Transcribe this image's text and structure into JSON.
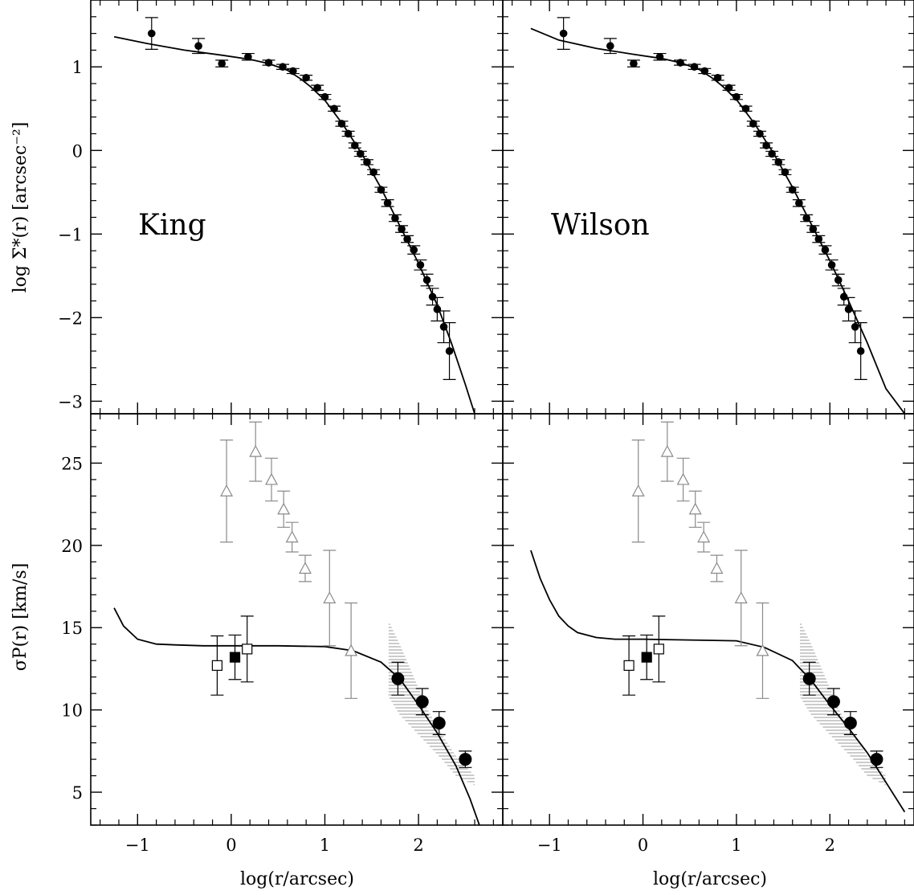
{
  "figure": {
    "panel_labels": [
      "King",
      "Wilson"
    ],
    "xlabel": "log(r/arcsec)",
    "ylabel_top": "log Σ*(r) [arcsec⁻²]",
    "ylabel_bottom": "σP(r) [km/s]"
  },
  "chart_data": [
    {
      "type": "scatter",
      "panel": "top-left",
      "title": "",
      "annotation": "King",
      "xlabel": "",
      "ylabel": "log Σ*(r) [arcsec⁻²]",
      "xlim": [
        -1.5,
        2.9
      ],
      "ylim": [
        -3.15,
        1.8
      ],
      "xticks": [
        -1,
        0,
        1,
        2
      ],
      "yticks": [
        -3,
        -2,
        -1,
        0,
        1
      ],
      "series": [
        {
          "marker": "filled-circle",
          "x": [
            -0.85,
            -0.35,
            -0.1,
            0.18,
            0.4,
            0.55,
            0.66,
            0.8,
            0.92,
            1.0,
            1.1,
            1.18,
            1.25,
            1.32,
            1.38,
            1.45,
            1.52,
            1.6,
            1.67,
            1.75,
            1.82,
            1.88,
            1.95,
            2.02,
            2.09,
            2.15,
            2.2,
            2.27,
            2.33
          ],
          "y": [
            1.4,
            1.25,
            1.04,
            1.12,
            1.05,
            1.0,
            0.95,
            0.87,
            0.75,
            0.64,
            0.5,
            0.32,
            0.2,
            0.06,
            -0.04,
            -0.14,
            -0.26,
            -0.47,
            -0.63,
            -0.81,
            -0.94,
            -1.06,
            -1.19,
            -1.37,
            -1.55,
            -1.75,
            -1.9,
            -2.11,
            -2.4
          ],
          "yerr": [
            0.19,
            0.09,
            0.04,
            0.04,
            0.03,
            0.03,
            0.03,
            0.03,
            0.03,
            0.03,
            0.03,
            0.03,
            0.03,
            0.03,
            0.03,
            0.03,
            0.03,
            0.03,
            0.04,
            0.04,
            0.04,
            0.04,
            0.05,
            0.06,
            0.07,
            0.1,
            0.14,
            0.19,
            0.34
          ]
        }
      ],
      "model": {
        "x": [
          -1.25,
          -0.9,
          -0.5,
          -0.1,
          0.2,
          0.4,
          0.6,
          0.75,
          0.85,
          1.0,
          1.2,
          1.4,
          1.6,
          1.8,
          2.0,
          2.2,
          2.35,
          2.5,
          2.6
        ],
        "y": [
          1.36,
          1.28,
          1.2,
          1.14,
          1.09,
          1.04,
          0.96,
          0.85,
          0.76,
          0.6,
          0.3,
          -0.05,
          -0.45,
          -0.9,
          -1.35,
          -1.85,
          -2.3,
          -2.8,
          -3.15
        ]
      }
    },
    {
      "type": "scatter",
      "panel": "top-right",
      "title": "",
      "annotation": "Wilson",
      "xlabel": "",
      "ylabel": "",
      "xlim": [
        -1.5,
        2.9
      ],
      "ylim": [
        -3.15,
        1.8
      ],
      "xticks": [
        -1,
        0,
        1,
        2
      ],
      "yticks": [
        -3,
        -2,
        -1,
        0,
        1
      ],
      "series": [
        {
          "marker": "filled-circle",
          "x": [
            -0.85,
            -0.35,
            -0.1,
            0.18,
            0.4,
            0.55,
            0.66,
            0.8,
            0.92,
            1.0,
            1.1,
            1.18,
            1.25,
            1.32,
            1.38,
            1.45,
            1.52,
            1.6,
            1.67,
            1.75,
            1.82,
            1.88,
            1.95,
            2.02,
            2.09,
            2.15,
            2.2,
            2.27,
            2.33
          ],
          "y": [
            1.4,
            1.25,
            1.04,
            1.12,
            1.05,
            1.0,
            0.95,
            0.87,
            0.75,
            0.64,
            0.5,
            0.32,
            0.2,
            0.06,
            -0.04,
            -0.14,
            -0.26,
            -0.47,
            -0.63,
            -0.81,
            -0.94,
            -1.06,
            -1.19,
            -1.37,
            -1.55,
            -1.75,
            -1.9,
            -2.11,
            -2.4
          ],
          "yerr": [
            0.19,
            0.09,
            0.04,
            0.04,
            0.03,
            0.03,
            0.03,
            0.03,
            0.03,
            0.03,
            0.03,
            0.03,
            0.03,
            0.03,
            0.03,
            0.03,
            0.03,
            0.03,
            0.04,
            0.04,
            0.04,
            0.04,
            0.05,
            0.06,
            0.07,
            0.1,
            0.14,
            0.19,
            0.34
          ]
        }
      ],
      "model": {
        "x": [
          -1.2,
          -0.9,
          -0.5,
          -0.1,
          0.2,
          0.4,
          0.6,
          0.75,
          0.85,
          1.0,
          1.2,
          1.4,
          1.6,
          1.8,
          2.0,
          2.2,
          2.4,
          2.6,
          2.8
        ],
        "y": [
          1.46,
          1.32,
          1.22,
          1.15,
          1.1,
          1.05,
          0.97,
          0.86,
          0.77,
          0.61,
          0.31,
          -0.04,
          -0.44,
          -0.88,
          -1.32,
          -1.8,
          -2.3,
          -2.85,
          -3.15
        ]
      }
    },
    {
      "type": "scatter",
      "panel": "bottom-left",
      "title": "",
      "xlabel": "log(r/arcsec)",
      "ylabel": "σP(r) [km/s]",
      "xlim": [
        -1.5,
        2.9
      ],
      "ylim": [
        3.0,
        28.0
      ],
      "xticks": [
        -1,
        0,
        1,
        2
      ],
      "yticks": [
        5,
        10,
        15,
        20,
        25
      ],
      "series": [
        {
          "marker": "open-square",
          "x": [
            -0.15,
            0.17
          ],
          "y": [
            12.7,
            13.7
          ],
          "yerr": [
            1.8,
            2.0
          ]
        },
        {
          "marker": "filled-square",
          "x": [
            0.04
          ],
          "y": [
            13.2
          ],
          "yerr": [
            1.35
          ]
        },
        {
          "marker": "open-triangle-gray",
          "x": [
            -0.05,
            0.26,
            0.43,
            0.56,
            0.65,
            0.79,
            1.05,
            1.28
          ],
          "y": [
            23.3,
            25.7,
            24.0,
            22.2,
            20.5,
            18.6,
            16.8,
            13.6
          ],
          "yerr": [
            3.1,
            1.8,
            1.3,
            1.1,
            0.9,
            0.8,
            2.9,
            2.9
          ]
        },
        {
          "marker": "filled-circle-large",
          "x": [
            1.78,
            2.04,
            2.22,
            2.5
          ],
          "y": [
            11.9,
            10.5,
            9.2,
            7.0
          ],
          "yerr": [
            1.0,
            0.8,
            0.7,
            0.5
          ]
        }
      ],
      "shaded_band": {
        "upper_x": [
          1.68,
          1.8,
          1.95,
          2.1,
          2.25,
          2.4,
          2.6
        ],
        "upper_y": [
          15.4,
          14.0,
          12.0,
          10.0,
          8.5,
          7.2,
          6.0
        ],
        "lower_x": [
          1.68,
          1.8,
          1.95,
          2.1,
          2.25,
          2.4,
          2.6
        ],
        "lower_y": [
          10.8,
          9.7,
          8.8,
          7.9,
          7.0,
          6.0,
          5.4
        ]
      },
      "model": {
        "x": [
          -1.25,
          -1.15,
          -1.0,
          -0.8,
          -0.6,
          -0.3,
          0.0,
          0.5,
          1.0,
          1.3,
          1.6,
          1.8,
          2.0,
          2.2,
          2.4,
          2.55,
          2.65
        ],
        "y": [
          16.2,
          15.1,
          14.3,
          14.0,
          13.95,
          13.9,
          13.9,
          13.9,
          13.85,
          13.6,
          12.9,
          11.9,
          10.3,
          8.6,
          6.6,
          4.6,
          3.0
        ]
      }
    },
    {
      "type": "scatter",
      "panel": "bottom-right",
      "title": "",
      "xlabel": "log(r/arcsec)",
      "ylabel": "",
      "xlim": [
        -1.5,
        2.9
      ],
      "ylim": [
        3.0,
        28.0
      ],
      "xticks": [
        -1,
        0,
        1,
        2
      ],
      "yticks": [
        5,
        10,
        15,
        20,
        25
      ],
      "series": [
        {
          "marker": "open-square",
          "x": [
            -0.15,
            0.17
          ],
          "y": [
            12.7,
            13.7
          ],
          "yerr": [
            1.8,
            2.0
          ]
        },
        {
          "marker": "filled-square",
          "x": [
            0.04
          ],
          "y": [
            13.2
          ],
          "yerr": [
            1.35
          ]
        },
        {
          "marker": "open-triangle-gray",
          "x": [
            -0.05,
            0.26,
            0.43,
            0.56,
            0.65,
            0.79,
            1.05,
            1.28
          ],
          "y": [
            23.3,
            25.7,
            24.0,
            22.2,
            20.5,
            18.6,
            16.8,
            13.6
          ],
          "yerr": [
            3.1,
            1.8,
            1.3,
            1.1,
            0.9,
            0.8,
            2.9,
            2.9
          ]
        },
        {
          "marker": "filled-circle-large",
          "x": [
            1.78,
            2.04,
            2.22,
            2.5
          ],
          "y": [
            11.9,
            10.5,
            9.2,
            7.0
          ],
          "yerr": [
            1.0,
            0.8,
            0.7,
            0.5
          ]
        }
      ],
      "shaded_band": {
        "upper_x": [
          1.68,
          1.8,
          1.95,
          2.1,
          2.25,
          2.4,
          2.6
        ],
        "upper_y": [
          15.4,
          14.0,
          12.0,
          10.0,
          8.5,
          7.2,
          6.0
        ],
        "lower_x": [
          1.68,
          1.8,
          1.95,
          2.1,
          2.25,
          2.4,
          2.6
        ],
        "lower_y": [
          10.8,
          9.7,
          8.8,
          7.9,
          7.0,
          6.0,
          5.4
        ]
      },
      "model": {
        "x": [
          -1.2,
          -1.1,
          -1.0,
          -0.9,
          -0.8,
          -0.7,
          -0.5,
          -0.3,
          0.0,
          0.5,
          1.0,
          1.3,
          1.6,
          1.8,
          2.0,
          2.2,
          2.4,
          2.6,
          2.8
        ],
        "y": [
          19.7,
          18.0,
          16.7,
          15.7,
          15.1,
          14.7,
          14.4,
          14.3,
          14.3,
          14.25,
          14.2,
          13.8,
          13.0,
          11.8,
          10.3,
          8.9,
          7.4,
          5.6,
          3.8
        ]
      }
    }
  ]
}
